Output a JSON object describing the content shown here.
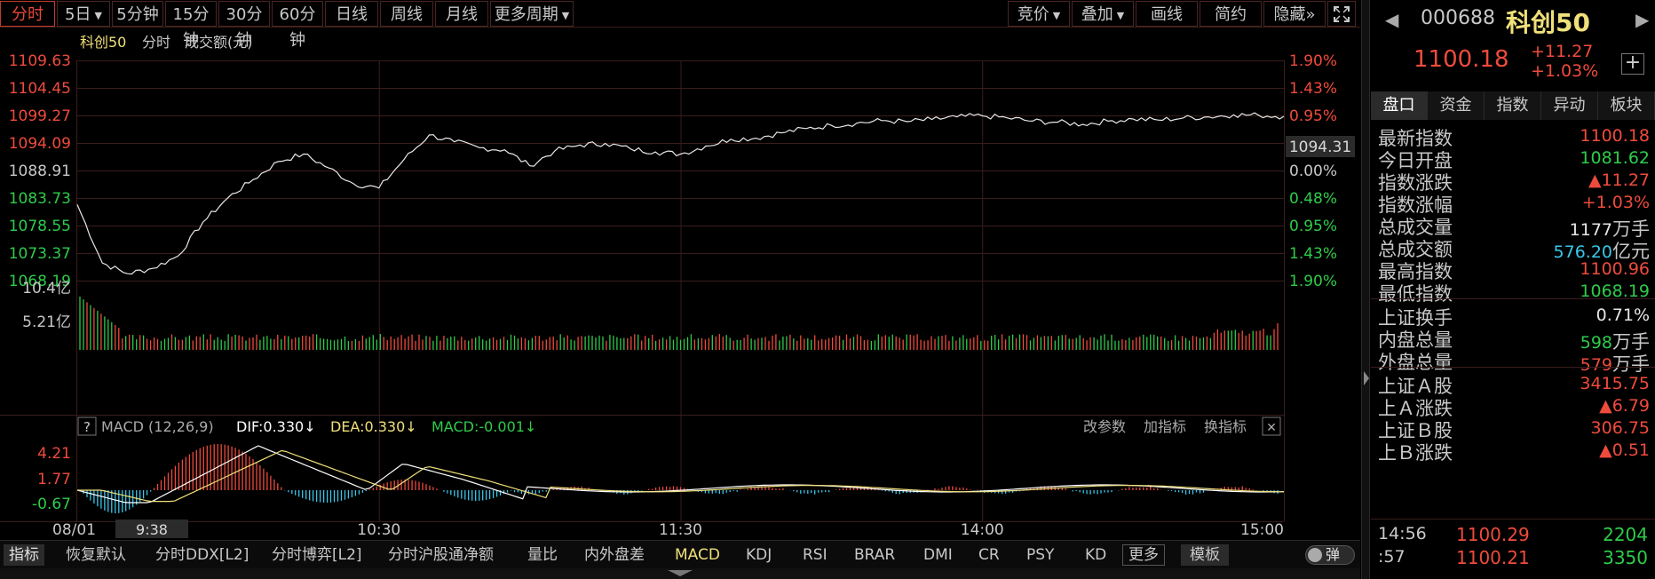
{
  "toolbar": {
    "periods": [
      {
        "label": "分时",
        "active": true,
        "caret": false
      },
      {
        "label": "5日",
        "active": false,
        "caret": true
      },
      {
        "label": "5分钟",
        "active": false,
        "caret": false
      },
      {
        "label": "15分钟",
        "active": false,
        "caret": false
      },
      {
        "label": "30分钟",
        "active": false,
        "caret": false
      },
      {
        "label": "60分钟",
        "active": false,
        "caret": false
      },
      {
        "label": "日线",
        "active": false,
        "caret": false
      },
      {
        "label": "周线",
        "active": false,
        "caret": false
      },
      {
        "label": "月线",
        "active": false,
        "caret": false
      },
      {
        "label": "更多周期",
        "active": false,
        "caret": true
      }
    ],
    "tools": [
      {
        "label": "竞价",
        "caret": true
      },
      {
        "label": "叠加",
        "caret": true
      },
      {
        "label": "画线",
        "caret": false
      },
      {
        "label": "简约",
        "caret": false
      },
      {
        "label": "隐藏",
        "caret": false,
        "suffix": "»"
      }
    ],
    "fullscreen_icon": "fullscreen-icon"
  },
  "chart": {
    "legend": {
      "name": "科创50",
      "mode": "分时",
      "volume_label": "成交额(元)"
    },
    "price_ticks": [
      "1109.63",
      "1104.45",
      "1099.27",
      "1094.09",
      "1088.91",
      "1083.73",
      "1078.55",
      "1073.37",
      "1068.19"
    ],
    "pct_ticks": [
      "1.90%",
      "1.43%",
      "0.95%",
      "0.48%",
      "0.00%",
      "0.48%",
      "0.95%",
      "1.43%",
      "1.90%"
    ],
    "current_price_label": "1094.31",
    "volume_ticks": [
      "10.4亿",
      "5.21亿"
    ],
    "macd_header": {
      "help": "?",
      "name": "MACD (12,26,9)",
      "dif": "DIF:0.330↓",
      "dea": "DEA:0.330↓",
      "macd": "MACD:-0.001↓",
      "actions": [
        "改参数",
        "加指标",
        "换指标"
      ],
      "close": "✕"
    },
    "macd_ticks": [
      "4.21",
      "1.77",
      "-0.67"
    ],
    "time_ticks": [
      "08/01",
      "10:30",
      "11:30",
      "14:00",
      "15:00"
    ],
    "crosshair_time": "9:38",
    "colors": {
      "up": "#ef4b3c",
      "down": "#2ecc4a",
      "dif": "#ffffff",
      "dea": "#f0e07a",
      "macd_pos": "#ef4b3c",
      "macd_neg": "#39c6ea",
      "grid": "#3a1d1d"
    }
  },
  "chart_data": {
    "type": "line",
    "title": "",
    "x": [
      "09:30",
      "09:35",
      "09:40",
      "09:45",
      "09:50",
      "09:55",
      "10:00",
      "10:05",
      "10:10",
      "10:15",
      "10:20",
      "10:25",
      "10:30",
      "10:35",
      "10:40",
      "10:45",
      "10:50",
      "10:55",
      "11:00",
      "11:05",
      "11:10",
      "11:15",
      "11:20",
      "11:25",
      "11:30",
      "13:05",
      "13:10",
      "13:15",
      "13:20",
      "13:25",
      "13:30",
      "13:35",
      "13:40",
      "13:45",
      "13:50",
      "13:55",
      "14:00",
      "14:05",
      "14:10",
      "14:15",
      "14:20",
      "14:25",
      "14:30",
      "14:35",
      "14:40",
      "14:45",
      "14:50",
      "14:55",
      "15:00"
    ],
    "series": [
      {
        "values": [
          1082.5,
          1071.5,
          1069.5,
          1070.5,
          1072.8,
          1079.2,
          1083.8,
          1087.2,
          1090.6,
          1092.0,
          1089.4,
          1086.4,
          1085.6,
          1091.0,
          1095.6,
          1094.3,
          1093.2,
          1092.8,
          1089.8,
          1092.6,
          1093.7,
          1094.0,
          1093.0,
          1092.4,
          1092.0,
          1093.5,
          1094.8,
          1095.0,
          1096.0,
          1096.8,
          1097.4,
          1097.8,
          1098.3,
          1098.1,
          1098.5,
          1099.0,
          1099.2,
          1098.8,
          1098.2,
          1098.0,
          1097.6,
          1098.2,
          1098.6,
          1098.4,
          1098.8,
          1099.0,
          1099.4,
          1099.3,
          1099.1
        ]
      }
    ],
    "ylim": [
      1068.19,
      1109.63
    ],
    "ylabel": "",
    "xlabel": "",
    "grid": true
  },
  "panel": {
    "code": "000688",
    "name": "科创50",
    "price": "1100.18",
    "change": "+11.27",
    "change_pct": "+1.03%",
    "tabs": [
      "盘口",
      "资金",
      "指数",
      "异动",
      "板块"
    ],
    "active_tab": 0,
    "rows": [
      {
        "label": "最新指数",
        "value": "1100.18",
        "unit": "",
        "color": "up"
      },
      {
        "label": "今日开盘",
        "value": "1081.62",
        "unit": "",
        "color": "down"
      },
      {
        "label": "指数涨跌",
        "value": "▲11.27",
        "unit": "",
        "color": "up"
      },
      {
        "label": "指数涨幅",
        "value": "+1.03%",
        "unit": "",
        "color": "up"
      },
      {
        "label": "总成交量",
        "value": "1177",
        "unit": "万手",
        "color": "white"
      },
      {
        "label": "总成交额",
        "value": "576.20",
        "unit": "亿元",
        "color": "cyan"
      },
      {
        "label": "最高指数",
        "value": "1100.96",
        "unit": "",
        "color": "up"
      },
      {
        "label": "最低指数",
        "value": "1068.19",
        "unit": "",
        "color": "down"
      },
      {
        "label": "上证换手",
        "value": "0.71%",
        "unit": "",
        "color": "white"
      },
      {
        "label": "内盘总量",
        "value": "598",
        "unit": "万手",
        "color": "down"
      },
      {
        "label": "外盘总量",
        "value": "579",
        "unit": "万手",
        "color": "up"
      },
      {
        "label": "上证Ａ股",
        "value": "3415.75",
        "unit": "",
        "color": "up"
      },
      {
        "label": "上Ａ涨跌",
        "value": "▲6.79",
        "unit": "",
        "color": "up"
      },
      {
        "label": "上证Ｂ股",
        "value": "306.75",
        "unit": "",
        "color": "up"
      },
      {
        "label": "上Ｂ涨跌",
        "value": "▲0.51",
        "unit": "",
        "color": "up"
      }
    ],
    "ticks": [
      {
        "time": "14:56",
        "price": "1100.29",
        "volume": "2204",
        "vol_color": "down"
      },
      {
        "time": ":57",
        "price": "1100.21",
        "volume": "3350",
        "vol_color": "down"
      }
    ]
  },
  "indicators": {
    "items": [
      "指标",
      "恢复默认",
      "分时DDX[L2]",
      "分时博弈[L2]",
      "分时沪股通净额",
      "量比",
      "内外盘差",
      "MACD",
      "KDJ",
      "RSI",
      "BRAR",
      "DMI",
      "CR",
      "PSY",
      "KD",
      "更多",
      "模板"
    ],
    "toggle_label": "弹"
  }
}
